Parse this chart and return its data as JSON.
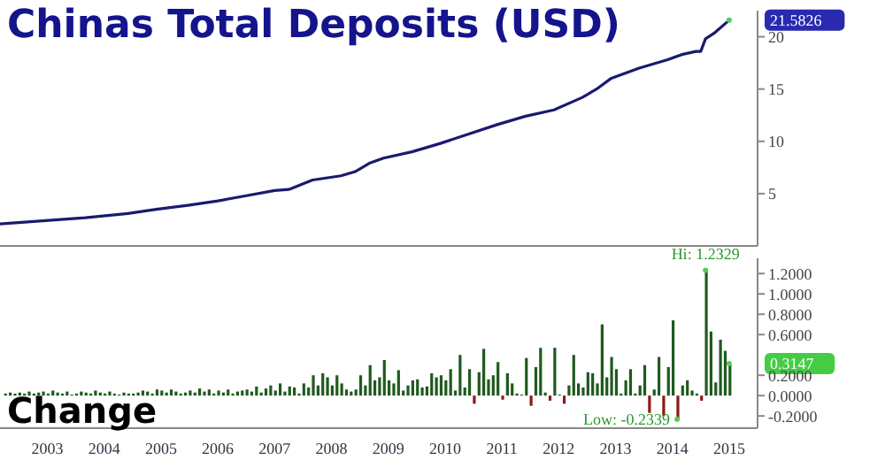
{
  "chart_data": [
    {
      "type": "line",
      "title": "Chinas Total Deposits (USD)",
      "xlim": [
        "2002-09",
        "2016-01"
      ],
      "ylim": [
        0,
        22.5
      ],
      "yticks": [
        5,
        10,
        15,
        20
      ],
      "tick_labels": "y",
      "grid": false,
      "legend": false,
      "marker": "none",
      "line_style": "solid",
      "series": [
        {
          "color": "#1a1a6e",
          "x": [
            "2002-09",
            "2003-06",
            "2004-03",
            "2004-12",
            "2005-06",
            "2006-01",
            "2006-07",
            "2007-01",
            "2007-07",
            "2007-10",
            "2008-03",
            "2008-09",
            "2008-12",
            "2009-03",
            "2009-06",
            "2009-12",
            "2010-06",
            "2010-12",
            "2011-06",
            "2011-12",
            "2012-06",
            "2012-12",
            "2013-03",
            "2013-06",
            "2013-12",
            "2014-03",
            "2014-06",
            "2014-09",
            "2014-12",
            "2015-01",
            "2015-02",
            "2015-04",
            "2015-07"
          ],
          "values": [
            2.1,
            2.4,
            2.7,
            3.1,
            3.5,
            3.9,
            4.3,
            4.8,
            5.3,
            5.4,
            6.3,
            6.7,
            7.1,
            7.9,
            8.4,
            9.0,
            9.8,
            10.7,
            11.6,
            12.4,
            13.0,
            14.2,
            15.0,
            16.0,
            17.0,
            17.4,
            17.8,
            18.3,
            18.6,
            18.6,
            19.8,
            20.4,
            21.5826
          ]
        }
      ],
      "annotations": [
        {
          "text": "21.5826",
          "x": "2015-07",
          "y": 21.5826
        }
      ]
    },
    {
      "type": "bar",
      "title": "Change",
      "xlim": [
        "2002-09",
        "2016-01"
      ],
      "xticks": [
        {
          "value": "2003-07",
          "label": "2003"
        },
        {
          "value": "2004-07",
          "label": "2004"
        },
        {
          "value": "2005-07",
          "label": "2005"
        },
        {
          "value": "2006-07",
          "label": "2006"
        },
        {
          "value": "2007-07",
          "label": "2007"
        },
        {
          "value": "2008-07",
          "label": "2008"
        },
        {
          "value": "2009-07",
          "label": "2009"
        },
        {
          "value": "2010-07",
          "label": "2010"
        },
        {
          "value": "2011-07",
          "label": "2011"
        },
        {
          "value": "2012-07",
          "label": "2012"
        },
        {
          "value": "2013-07",
          "label": "2013"
        },
        {
          "value": "2014-07",
          "label": "2014"
        },
        {
          "value": "2015-07",
          "label": "2015"
        }
      ],
      "ylim": [
        -0.32,
        1.35
      ],
      "yticks": [
        {
          "value": -0.2,
          "label": "-0.2000"
        },
        {
          "value": 0,
          "label": "0.0000"
        },
        {
          "value": 0.2,
          "label": "0.2000"
        },
        {
          "value": 0.6,
          "label": "0.6000"
        },
        {
          "value": 0.8,
          "label": "0.8000"
        },
        {
          "value": 1.0,
          "label": "1.0000"
        },
        {
          "value": 1.2,
          "label": "1.2000"
        }
      ],
      "grid": false,
      "legend": false,
      "x": [
        "2002-10",
        "2002-11",
        "2002-12",
        "2003-01",
        "2003-02",
        "2003-03",
        "2003-04",
        "2003-05",
        "2003-06",
        "2003-07",
        "2003-08",
        "2003-09",
        "2003-10",
        "2003-11",
        "2003-12",
        "2004-01",
        "2004-02",
        "2004-03",
        "2004-04",
        "2004-05",
        "2004-06",
        "2004-07",
        "2004-08",
        "2004-09",
        "2004-10",
        "2004-11",
        "2004-12",
        "2005-01",
        "2005-02",
        "2005-03",
        "2005-04",
        "2005-05",
        "2005-06",
        "2005-07",
        "2005-08",
        "2005-09",
        "2005-10",
        "2005-11",
        "2005-12",
        "2006-01",
        "2006-02",
        "2006-03",
        "2006-04",
        "2006-05",
        "2006-06",
        "2006-07",
        "2006-08",
        "2006-09",
        "2006-10",
        "2006-11",
        "2006-12",
        "2007-01",
        "2007-02",
        "2007-03",
        "2007-04",
        "2007-05",
        "2007-06",
        "2007-07",
        "2007-08",
        "2007-09",
        "2007-10",
        "2007-11",
        "2007-12",
        "2008-01",
        "2008-02",
        "2008-03",
        "2008-04",
        "2008-05",
        "2008-06",
        "2008-07",
        "2008-08",
        "2008-09",
        "2008-10",
        "2008-11",
        "2008-12",
        "2009-01",
        "2009-02",
        "2009-03",
        "2009-04",
        "2009-05",
        "2009-06",
        "2009-07",
        "2009-08",
        "2009-09",
        "2009-10",
        "2009-11",
        "2009-12",
        "2010-01",
        "2010-02",
        "2010-03",
        "2010-04",
        "2010-05",
        "2010-06",
        "2010-07",
        "2010-08",
        "2010-09",
        "2010-10",
        "2010-11",
        "2010-12",
        "2011-01",
        "2011-02",
        "2011-03",
        "2011-04",
        "2011-05",
        "2011-06",
        "2011-07",
        "2011-08",
        "2011-09",
        "2011-10",
        "2011-11",
        "2011-12",
        "2012-01",
        "2012-02",
        "2012-03",
        "2012-04",
        "2012-05",
        "2012-06",
        "2012-07",
        "2012-08",
        "2012-09",
        "2012-10",
        "2012-11",
        "2012-12",
        "2013-01",
        "2013-02",
        "2013-03",
        "2013-04",
        "2013-05",
        "2013-06",
        "2013-07",
        "2013-08",
        "2013-09",
        "2013-10",
        "2013-11",
        "2013-12",
        "2014-01",
        "2014-02",
        "2014-03",
        "2014-04",
        "2014-05",
        "2014-06",
        "2014-07",
        "2014-08",
        "2014-09",
        "2014-10",
        "2014-11",
        "2014-12",
        "2015-01",
        "2015-02",
        "2015-03",
        "2015-04",
        "2015-05",
        "2015-06",
        "2015-07"
      ],
      "values": [
        0.02,
        0.03,
        0.02,
        0.03,
        0.02,
        0.04,
        0.02,
        0.03,
        0.04,
        0.02,
        0.05,
        0.03,
        0.02,
        0.04,
        0.01,
        0.02,
        0.04,
        0.03,
        0.02,
        0.05,
        0.03,
        0.02,
        0.04,
        0.02,
        0.01,
        0.03,
        0.02,
        0.02,
        0.03,
        0.05,
        0.04,
        0.02,
        0.06,
        0.05,
        0.03,
        0.06,
        0.04,
        0.02,
        0.03,
        0.05,
        0.03,
        0.07,
        0.04,
        0.06,
        0.02,
        0.05,
        0.03,
        0.06,
        0.02,
        0.04,
        0.05,
        0.06,
        0.04,
        0.09,
        0.03,
        0.07,
        0.1,
        0.05,
        0.12,
        0.04,
        0.09,
        0.08,
        0.02,
        0.12,
        0.08,
        0.2,
        0.1,
        0.22,
        0.18,
        0.1,
        0.2,
        0.12,
        0.06,
        0.04,
        0.06,
        0.2,
        0.1,
        0.3,
        0.15,
        0.18,
        0.35,
        0.15,
        0.12,
        0.25,
        0.05,
        0.1,
        0.15,
        0.16,
        0.08,
        0.09,
        0.22,
        0.18,
        0.2,
        0.15,
        0.26,
        0.05,
        0.4,
        0.08,
        0.26,
        -0.08,
        0.23,
        0.46,
        0.16,
        0.2,
        0.33,
        -0.04,
        0.22,
        0.12,
        0.02,
        0.01,
        0.37,
        -0.1,
        0.28,
        0.47,
        0.03,
        -0.05,
        0.47,
        0.01,
        -0.08,
        0.1,
        0.4,
        0.12,
        0.08,
        0.23,
        0.22,
        0.12,
        0.7,
        0.18,
        0.38,
        0.26,
        0.02,
        0.15,
        0.26,
        0.02,
        0.1,
        0.3,
        -0.17,
        0.06,
        0.38,
        -0.2,
        0.28,
        0.74,
        -0.2339,
        0.1,
        0.15,
        0.05,
        0.02,
        -0.05,
        1.2329,
        0.63,
        0.13,
        0.55,
        0.44,
        0.3147
      ],
      "colors": [
        "#1f5a1f",
        "#1f5a1f",
        "#1f5a1f",
        "#1f5a1f",
        "#1f5a1f",
        "#1f5a1f",
        "#1f5a1f",
        "#1f5a1f",
        "#1f5a1f",
        "#1f5a1f",
        "#1f5a1f",
        "#1f5a1f",
        "#1f5a1f",
        "#1f5a1f",
        "#1f5a1f",
        "#1f5a1f",
        "#1f5a1f",
        "#1f5a1f",
        "#1f5a1f",
        "#1f5a1f",
        "#1f5a1f",
        "#1f5a1f",
        "#1f5a1f",
        "#1f5a1f",
        "#1f5a1f",
        "#1f5a1f",
        "#1f5a1f",
        "#1f5a1f",
        "#1f5a1f",
        "#1f5a1f",
        "#1f5a1f",
        "#1f5a1f",
        "#1f5a1f",
        "#1f5a1f",
        "#1f5a1f",
        "#1f5a1f",
        "#1f5a1f",
        "#1f5a1f",
        "#1f5a1f",
        "#1f5a1f",
        "#1f5a1f",
        "#1f5a1f",
        "#1f5a1f",
        "#1f5a1f",
        "#1f5a1f",
        "#1f5a1f",
        "#1f5a1f",
        "#1f5a1f",
        "#1f5a1f",
        "#1f5a1f",
        "#1f5a1f",
        "#1f5a1f",
        "#1f5a1f",
        "#1f5a1f",
        "#1f5a1f",
        "#1f5a1f",
        "#1f5a1f",
        "#1f5a1f",
        "#1f5a1f",
        "#1f5a1f",
        "#1f5a1f",
        "#1f5a1f",
        "#1f5a1f",
        "#1f5a1f",
        "#1f5a1f",
        "#1f5a1f",
        "#1f5a1f",
        "#1f5a1f",
        "#1f5a1f",
        "#1f5a1f",
        "#1f5a1f",
        "#1f5a1f",
        "#1f5a1f",
        "#1f5a1f",
        "#1f5a1f",
        "#1f5a1f",
        "#1f5a1f",
        "#1f5a1f",
        "#1f5a1f",
        "#1f5a1f",
        "#1f5a1f",
        "#1f5a1f",
        "#1f5a1f",
        "#1f5a1f",
        "#1f5a1f",
        "#1f5a1f",
        "#1f5a1f",
        "#1f5a1f",
        "#1f5a1f",
        "#1f5a1f",
        "#1f5a1f",
        "#1f5a1f",
        "#1f5a1f",
        "#1f5a1f",
        "#1f5a1f",
        "#1f5a1f",
        "#1f5a1f",
        "#1f5a1f",
        "#1f5a1f",
        "#8b1a1a",
        "#1f5a1f",
        "#1f5a1f",
        "#1f5a1f",
        "#1f5a1f",
        "#1f5a1f",
        "#8b1a1a",
        "#1f5a1f",
        "#1f5a1f",
        "#1f5a1f",
        "#1f5a1f",
        "#1f5a1f",
        "#8b1a1a",
        "#1f5a1f",
        "#1f5a1f",
        "#1f5a1f",
        "#8b1a1a",
        "#1f5a1f",
        "#1f5a1f",
        "#8b1a1a",
        "#1f5a1f",
        "#1f5a1f",
        "#1f5a1f",
        "#1f5a1f",
        "#1f5a1f",
        "#1f5a1f",
        "#1f5a1f",
        "#1f5a1f",
        "#1f5a1f",
        "#1f5a1f",
        "#1f5a1f",
        "#1f5a1f",
        "#1f5a1f",
        "#1f5a1f",
        "#1f5a1f",
        "#1f5a1f",
        "#1f5a1f",
        "#8b1a1a",
        "#1f5a1f",
        "#1f5a1f",
        "#8b1a1a",
        "#1f5a1f",
        "#1f5a1f",
        "#8b1a1a",
        "#1f5a1f",
        "#1f5a1f",
        "#1f5a1f",
        "#1f5a1f",
        "#8b1a1a",
        "#1f5a1f",
        "#1f5a1f",
        "#1f5a1f",
        "#1f5a1f",
        "#1f5a1f",
        "#1f5a1f"
      ],
      "annotations": [
        {
          "text": "Hi: 1.2329",
          "x": "2015-02",
          "y": 1.2329
        },
        {
          "text": "Low: -0.2339",
          "x": "2014-08",
          "y": -0.2339
        },
        {
          "text": "0.3147",
          "x": "2015-07",
          "y": 0.3147
        }
      ]
    }
  ]
}
